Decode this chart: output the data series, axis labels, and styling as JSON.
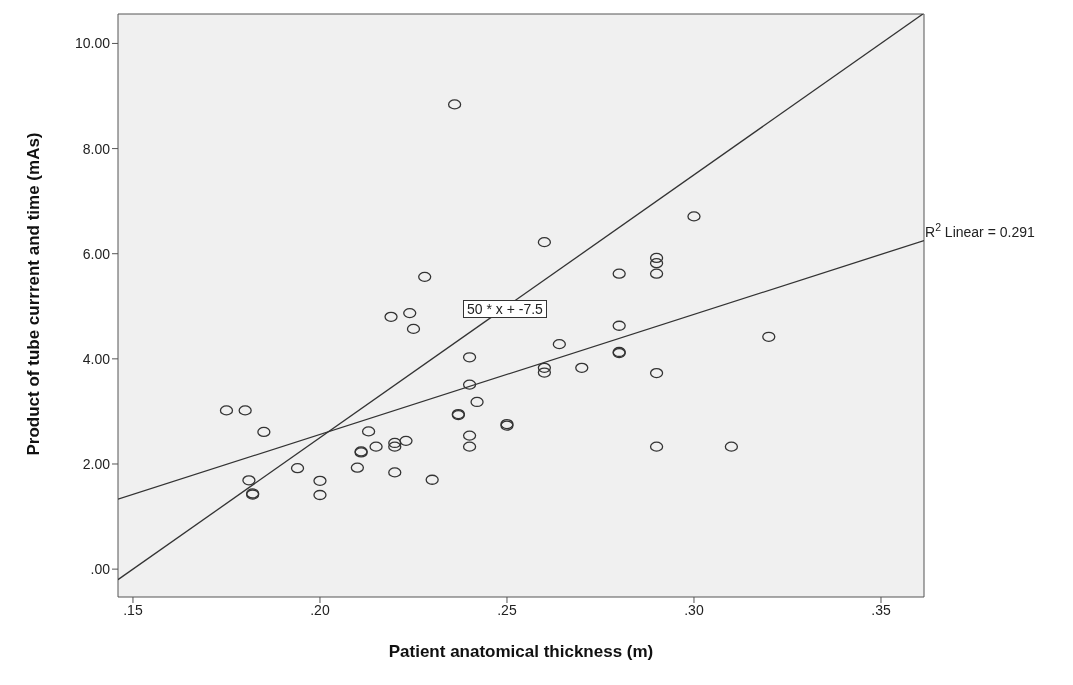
{
  "chart_data": {
    "type": "scatter",
    "xlabel": "Patient anatomical thickness (m)",
    "ylabel": "Product of tube currrent and time (mAs)",
    "xlim": [
      0.146,
      0.3615
    ],
    "ylim": [
      -0.53,
      10.56
    ],
    "xticks": [
      {
        "value": 0.15,
        "label": ".15"
      },
      {
        "value": 0.2,
        "label": ".20"
      },
      {
        "value": 0.25,
        "label": ".25"
      },
      {
        "value": 0.3,
        "label": ".30"
      },
      {
        "value": 0.35,
        "label": ".35"
      }
    ],
    "yticks": [
      {
        "value": 0,
        "label": ".00"
      },
      {
        "value": 2,
        "label": "2.00"
      },
      {
        "value": 4,
        "label": "4.00"
      },
      {
        "value": 6,
        "label": "6.00"
      },
      {
        "value": 8,
        "label": "8.00"
      },
      {
        "value": 10,
        "label": "10.00"
      }
    ],
    "grid": false,
    "legend": false,
    "marker": "circle",
    "series": [
      {
        "color": "#333333",
        "x": [
          0.236,
          0.228,
          0.219,
          0.224,
          0.225,
          0.24,
          0.24,
          0.242,
          0.237,
          0.237,
          0.25,
          0.25,
          0.24,
          0.24,
          0.175,
          0.18,
          0.185,
          0.213,
          0.211,
          0.211,
          0.215,
          0.22,
          0.22,
          0.223,
          0.194,
          0.21,
          0.22,
          0.23,
          0.181,
          0.182,
          0.182,
          0.2,
          0.2,
          0.28,
          0.264,
          0.26,
          0.26,
          0.27,
          0.28,
          0.28,
          0.29,
          0.32,
          0.29,
          0.31,
          0.3,
          0.26,
          0.28,
          0.29,
          0.29,
          0.29
        ],
        "values": [
          8.84,
          5.56,
          4.8,
          4.87,
          4.57,
          4.03,
          3.51,
          3.18,
          2.95,
          2.93,
          2.76,
          2.73,
          2.54,
          2.33,
          3.02,
          3.02,
          2.61,
          2.62,
          2.24,
          2.22,
          2.33,
          2.4,
          2.33,
          2.44,
          1.92,
          1.93,
          1.84,
          1.7,
          1.69,
          1.44,
          1.42,
          1.68,
          1.41,
          4.63,
          4.28,
          3.83,
          3.74,
          3.83,
          4.13,
          4.11,
          3.73,
          4.42,
          2.33,
          2.33,
          6.71,
          6.22,
          5.62,
          5.92,
          5.82,
          5.62
        ]
      },
      {
        "type": "line",
        "color": "#333333",
        "marker": "none",
        "x": [
          0.146,
          0.3612
        ],
        "values": [
          -0.2,
          10.56
        ]
      },
      {
        "type": "line",
        "color": "#333333",
        "marker": "none",
        "x": [
          0.146,
          0.3615
        ],
        "values": [
          1.33,
          6.25
        ]
      }
    ],
    "annotations": [
      "50 * x + -7.5",
      {
        "text": "R$^{2}$ Linear = 0.291",
        "x": 0.3615,
        "y": 6.25
      }
    ]
  }
}
